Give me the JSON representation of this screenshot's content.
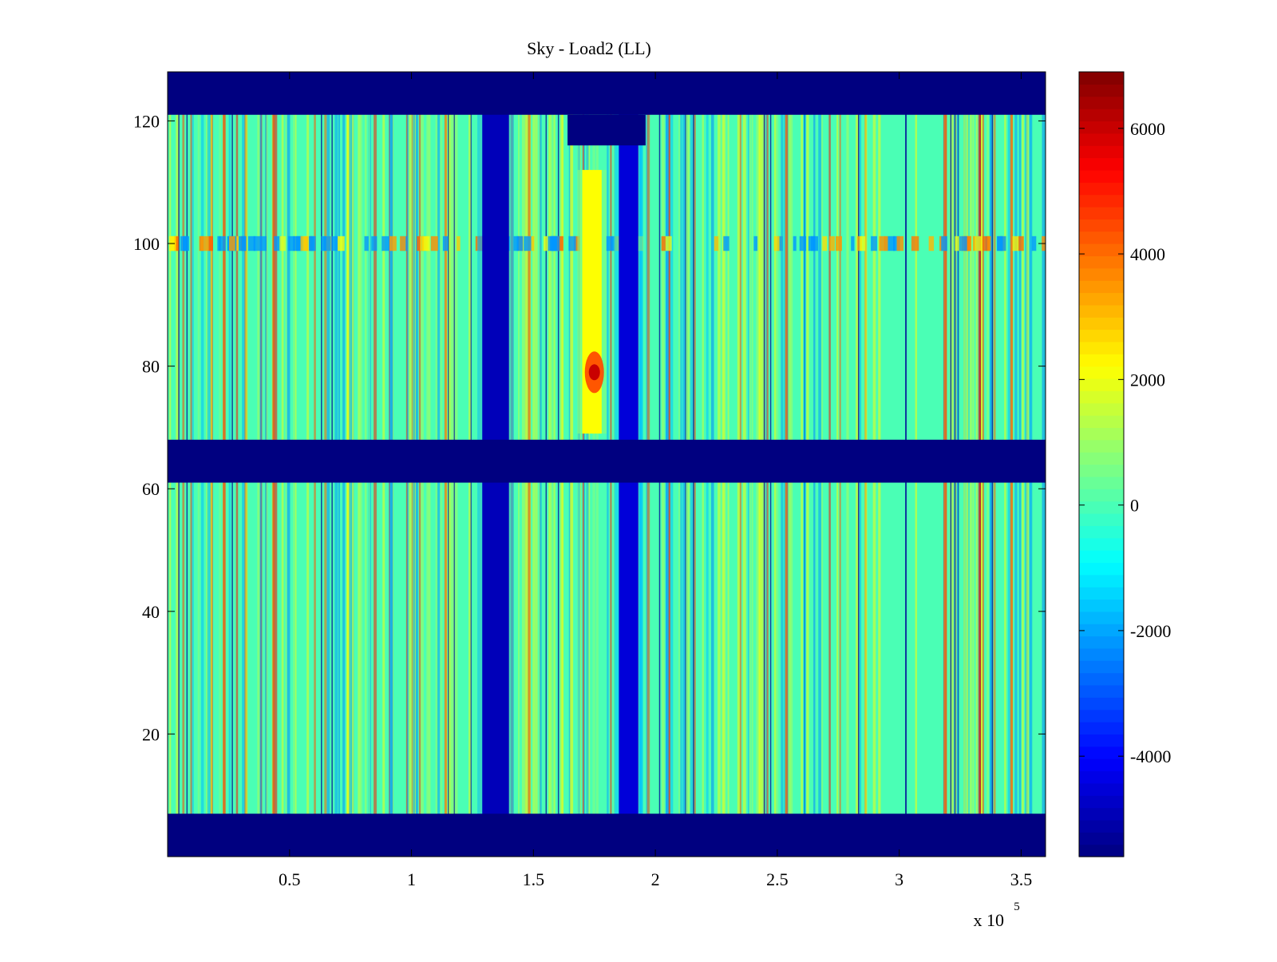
{
  "chart_data": {
    "type": "heatmap",
    "title": "Sky - Load2 (LL)",
    "xlabel": "",
    "ylabel": "",
    "x_exponent_label": "x 10",
    "x_exponent_power": "5",
    "xlim": [
      0,
      3.6
    ],
    "ylim": [
      0,
      128
    ],
    "x_ticks": [
      0.5,
      1,
      1.5,
      2,
      2.5,
      3,
      3.5
    ],
    "x_tick_labels": [
      "0.5",
      "1",
      "1.5",
      "2",
      "2.5",
      "3",
      "3.5"
    ],
    "y_ticks": [
      20,
      40,
      60,
      80,
      100,
      120
    ],
    "y_tick_labels": [
      "20",
      "40",
      "60",
      "80",
      "100",
      "120"
    ],
    "colormap": "jet",
    "clim": [
      -5600,
      6900
    ],
    "colorbar_ticks": [
      -4000,
      -2000,
      0,
      2000,
      4000,
      6000
    ],
    "colorbar_tick_labels": [
      "-4000",
      "-2000",
      "0",
      "2000",
      "4000",
      "6000"
    ],
    "masked_rows": [
      [
        0,
        7
      ],
      [
        61,
        68
      ],
      [
        121,
        128
      ]
    ],
    "masked_notch": {
      "x": [
        1.64,
        1.96
      ],
      "y": [
        116,
        121
      ]
    },
    "background_value": 0,
    "bands": [
      {
        "x": [
          1.29,
          1.4
        ],
        "value": -4900
      },
      {
        "x": [
          1.85,
          1.93
        ],
        "value": -4500
      },
      {
        "x": [
          1.7,
          1.78
        ],
        "value": 2200,
        "y": [
          69,
          112
        ]
      }
    ],
    "hotspot": {
      "x": 1.75,
      "y": 79,
      "value": 4500
    },
    "noisy_row_y": 100
  }
}
